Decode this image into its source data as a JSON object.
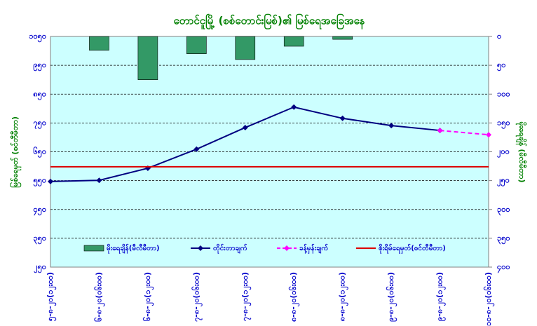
{
  "chart_data": {
    "type": "combo",
    "title": "တောင်ငူမြို့ (စစ်တောင်းမြစ်)၏ မြစ်ရေအခြေအနေ",
    "y_label": "မြစ်ရေမှတ် (စင်တီမီတာ)",
    "y2_label": "မိုးရေချိန် (မီလီမီတာ)",
    "categories": [
      "၅-၈-၂၀(၁၂း၀၀)",
      "၆-၈-၂၀(၀၆း၀၀)",
      "၆-၈-၂၀(၁၂း၀၀)",
      "၇-၈-၂၀(၀၆း၀၀)",
      "၇-၈-၂၀(၁၂း၀၀)",
      "၈-၈-၂၀(၀၆း၀၀)",
      "၈-၈-၂၀(၁၂း၀၀)",
      "၉-၈-၂၀(၀၆း၀၀)",
      "၉-၈-၂၀(၁၂း၀၀)",
      "၁၀-၈-၂၀(၀၆း၀၀)"
    ],
    "series": [
      {
        "name": "မိုးရေချိန်(မီလီမီတာ)",
        "kind": "bar",
        "axis": "y2",
        "color": "#339966",
        "values": [
          null,
          24,
          75,
          30,
          40,
          17,
          5,
          null,
          null,
          null
        ]
      },
      {
        "name": "တိုင်းတာချက်",
        "kind": "line",
        "color": "#000080",
        "values": [
          547,
          551,
          593,
          659,
          734,
          805,
          766,
          741,
          724,
          null
        ]
      },
      {
        "name": "ခန့်မှန်းချက်",
        "kind": "dashed",
        "color": "#ff00ff",
        "values": [
          null,
          null,
          null,
          null,
          null,
          null,
          null,
          null,
          724,
          709
        ]
      },
      {
        "name": "စိုးရိမ်ရေမှတ်(စင်တီမီတာ)",
        "kind": "plain",
        "color": "#dd0000",
        "values": [
          598,
          598,
          598,
          598,
          598,
          598,
          598,
          598,
          598,
          598
        ]
      }
    ],
    "ylim": [
      250,
      1050
    ],
    "yticks": [
      {
        "value": 250,
        "label": "၂၅၀"
      },
      {
        "value": 350,
        "label": "၃၅၀"
      },
      {
        "value": 450,
        "label": "၄၅၀"
      },
      {
        "value": 550,
        "label": "၅၅၀"
      },
      {
        "value": 650,
        "label": "၆၅၀"
      },
      {
        "value": 750,
        "label": "၇၅၀"
      },
      {
        "value": 850,
        "label": "၈၅၀"
      },
      {
        "value": 950,
        "label": "၉၅၀"
      },
      {
        "value": 1050,
        "label": "၁၀၅၀"
      }
    ],
    "y2lim": [
      0,
      400
    ],
    "y2_reversed": true,
    "y2ticks": [
      {
        "value": 0,
        "label": "၀"
      },
      {
        "value": 50,
        "label": "၅၀"
      },
      {
        "value": 100,
        "label": "၁၀၀"
      },
      {
        "value": 150,
        "label": "၁၅၀"
      },
      {
        "value": 200,
        "label": "၂၀၀"
      },
      {
        "value": 250,
        "label": "၂၅၀"
      },
      {
        "value": 300,
        "label": "၃၀၀"
      },
      {
        "value": 350,
        "label": "၃၅၀"
      },
      {
        "value": 400,
        "label": "၄၀၀"
      }
    ],
    "grid": true
  }
}
